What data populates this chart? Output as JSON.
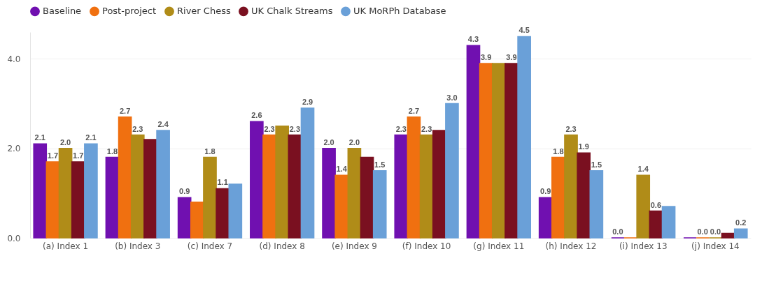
{
  "chart_data": {
    "type": "bar",
    "categories": [
      "(a) Index 1",
      "(b) Index 3",
      "(c) Index 7",
      "(d) Index 8",
      "(e) Index 9",
      "(f) Index 10",
      "(g) Index 11",
      "(h) Index 12",
      "(i) Index 13",
      "(j) Index 14"
    ],
    "series": [
      {
        "name": "Baseline",
        "color": "#7010b0",
        "values": [
          2.1,
          1.8,
          0.9,
          2.6,
          2.0,
          2.3,
          4.3,
          0.9,
          0.0,
          0.0
        ],
        "value_labels": [
          "2.1",
          "1.8",
          "0.9",
          "2.6",
          "2.0",
          "2.3",
          "4.3",
          "0.9",
          "0.0",
          null
        ]
      },
      {
        "name": "Post-project",
        "color": "#f07010",
        "values": [
          1.7,
          2.7,
          0.8,
          2.3,
          1.4,
          2.7,
          3.9,
          1.8,
          0.0,
          0.0
        ],
        "value_labels": [
          "1.7",
          "2.7",
          null,
          "2.3",
          "1.4",
          "2.7",
          "3.9",
          "1.8",
          null,
          "0.0"
        ]
      },
      {
        "name": "River Chess",
        "color": "#b08c18",
        "values": [
          2.0,
          2.3,
          1.8,
          2.5,
          2.0,
          2.3,
          3.9,
          2.3,
          1.4,
          0.0
        ],
        "value_labels": [
          "2.0",
          "2.3",
          "1.8",
          null,
          "2.0",
          "2.3",
          null,
          "2.3",
          "1.4",
          "0.0"
        ]
      },
      {
        "name": "UK Chalk Streams",
        "color": "#7a1020",
        "values": [
          1.7,
          2.2,
          1.1,
          2.3,
          1.8,
          2.4,
          3.9,
          1.9,
          0.6,
          0.1
        ],
        "value_labels": [
          "1.7",
          null,
          "1.1",
          "2.3",
          null,
          null,
          "3.9",
          "1.9",
          "0.6",
          null
        ]
      },
      {
        "name": "UK MoRPh Database",
        "color": "#6aa0d8",
        "values": [
          2.1,
          2.4,
          1.2,
          2.9,
          1.5,
          3.0,
          4.5,
          1.5,
          0.7,
          0.2
        ],
        "value_labels": [
          "2.1",
          "2.4",
          null,
          "2.9",
          "1.5",
          "3.0",
          "4.5",
          "1.5",
          null,
          "0.2"
        ]
      }
    ],
    "ylim": [
      0,
      4.6
    ],
    "yticks": [
      {
        "value": 0,
        "label": "0.0"
      },
      {
        "value": 2,
        "label": "2.0"
      },
      {
        "value": 4,
        "label": "4.0"
      }
    ],
    "grid": "y",
    "legend": "top left"
  }
}
